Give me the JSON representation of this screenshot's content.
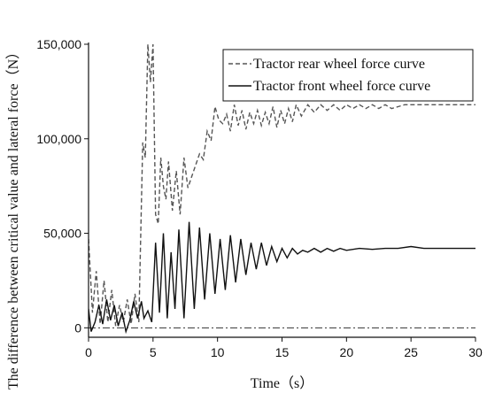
{
  "chart_data": {
    "type": "line",
    "title": "",
    "xlabel": "Time（s）",
    "ylabel": "The difference between critical value and lateral force（N）",
    "xlim": [
      0,
      30
    ],
    "ylim": [
      -5000,
      150000
    ],
    "xticks": [
      0,
      5,
      10,
      15,
      20,
      25,
      30
    ],
    "xtick_labels": [
      "0",
      "5",
      "10",
      "15",
      "20",
      "25",
      "30"
    ],
    "yticks": [
      0,
      50000,
      100000,
      150000
    ],
    "ytick_labels": [
      "0",
      "50,000",
      "100,000",
      "150,000"
    ],
    "grid": false,
    "legend_position": "top-right",
    "reference_line": {
      "y": 0,
      "style": "dash-dot"
    },
    "series": [
      {
        "name": "Tractor rear wheel force curve",
        "style": "dashed",
        "color": "#555555",
        "x": [
          0,
          0.3,
          0.6,
          0.9,
          1.2,
          1.5,
          1.8,
          2.1,
          2.4,
          2.7,
          3.0,
          3.3,
          3.6,
          3.9,
          4.2,
          4.4,
          4.6,
          4.8,
          5.0,
          5.2,
          5.4,
          5.6,
          5.8,
          6.0,
          6.2,
          6.5,
          6.8,
          7.1,
          7.4,
          7.7,
          8.0,
          8.3,
          8.6,
          8.9,
          9.2,
          9.5,
          9.8,
          10.1,
          10.4,
          10.7,
          11.0,
          11.3,
          11.6,
          11.9,
          12.2,
          12.5,
          12.8,
          13.1,
          13.4,
          13.7,
          14.0,
          14.3,
          14.6,
          14.9,
          15.2,
          15.5,
          15.8,
          16.1,
          16.5,
          17.0,
          17.5,
          18.0,
          18.5,
          19.0,
          19.5,
          20.0,
          20.5,
          21.0,
          21.5,
          22.0,
          22.5,
          23.0,
          23.5,
          24.0,
          24.5,
          25.0,
          26.0,
          27.0,
          28.0,
          29.0,
          30.0
        ],
        "y": [
          47000,
          8000,
          30000,
          2000,
          25000,
          3000,
          20000,
          1000,
          12000,
          3000,
          15000,
          2000,
          18000,
          3000,
          98000,
          90000,
          150000,
          130000,
          150000,
          60000,
          55000,
          90000,
          75000,
          68000,
          88000,
          62000,
          83000,
          60000,
          90000,
          74000,
          80000,
          86000,
          92000,
          89000,
          104000,
          99000,
          117000,
          110000,
          108000,
          113000,
          104000,
          118000,
          107000,
          115000,
          105000,
          114000,
          108000,
          115000,
          107000,
          114000,
          108000,
          117000,
          106000,
          115000,
          108000,
          116000,
          109000,
          118000,
          112000,
          118000,
          114000,
          118000,
          115000,
          118000,
          115000,
          118000,
          116000,
          118000,
          116000,
          118000,
          116000,
          118000,
          116000,
          117000,
          118000,
          118000,
          118000,
          118000,
          118000,
          118000,
          118000
        ]
      },
      {
        "name": "Tractor front wheel force curve",
        "style": "solid",
        "color": "#111111",
        "x": [
          0,
          0.2,
          0.5,
          0.8,
          1.1,
          1.4,
          1.7,
          2.0,
          2.3,
          2.6,
          2.9,
          3.2,
          3.5,
          3.8,
          4.1,
          4.3,
          4.6,
          4.9,
          5.2,
          5.5,
          5.8,
          6.1,
          6.4,
          6.7,
          7.0,
          7.4,
          7.8,
          8.2,
          8.6,
          9.0,
          9.4,
          9.8,
          10.2,
          10.6,
          11.0,
          11.4,
          11.8,
          12.2,
          12.6,
          13.0,
          13.4,
          13.8,
          14.2,
          14.6,
          15.0,
          15.4,
          15.8,
          16.2,
          16.6,
          17.0,
          17.5,
          18.0,
          18.5,
          19.0,
          19.5,
          20.0,
          21.0,
          22.0,
          23.0,
          24.0,
          25.0,
          26.0,
          27.0,
          28.0,
          29.0,
          30.0
        ],
        "y": [
          10000,
          -2000,
          3000,
          12000,
          2000,
          15000,
          4000,
          12000,
          1000,
          8000,
          -2000,
          4000,
          14000,
          5000,
          14000,
          5000,
          9000,
          3000,
          45000,
          8000,
          50000,
          5000,
          40000,
          10000,
          52000,
          5000,
          56000,
          10000,
          53000,
          15000,
          50000,
          18000,
          47000,
          20000,
          49000,
          24000,
          47000,
          28000,
          45000,
          31000,
          45000,
          33000,
          43000,
          35000,
          42000,
          37000,
          42000,
          39000,
          41000,
          40000,
          42000,
          40000,
          42000,
          40500,
          42000,
          41000,
          42000,
          41500,
          42000,
          42000,
          43000,
          42000,
          42000,
          42000,
          42000,
          42000
        ]
      }
    ]
  }
}
